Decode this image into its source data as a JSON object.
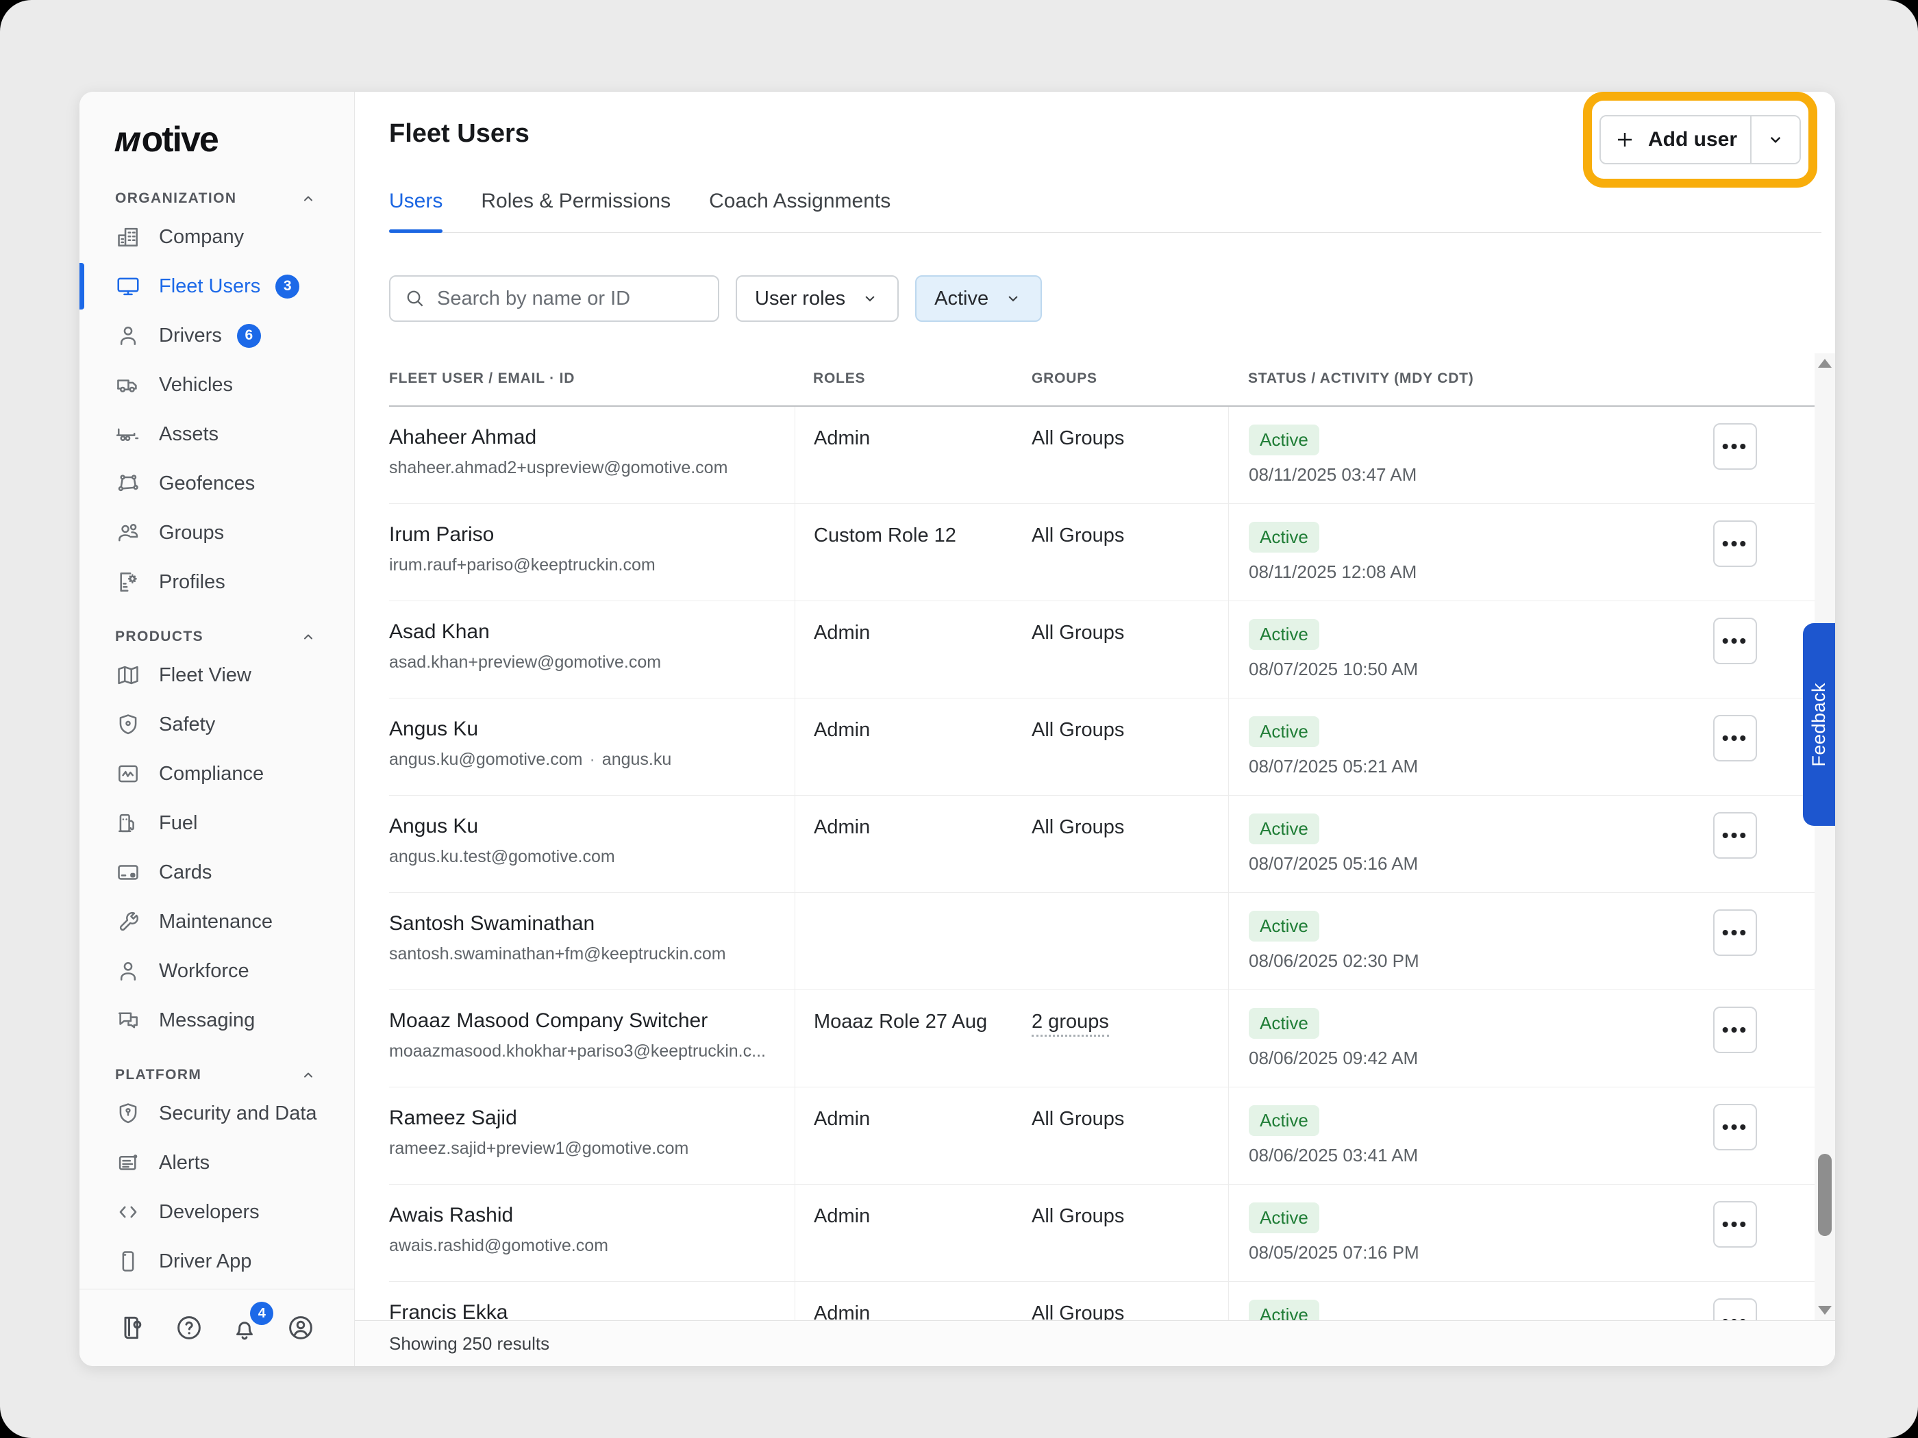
{
  "brand": {
    "logo_text": "motive"
  },
  "sidebar": {
    "sections": [
      {
        "label": "ORGANIZATION",
        "collapse_icon": "chevron-up-icon",
        "items": [
          {
            "label": "Company",
            "icon": "building"
          },
          {
            "label": "Fleet Users",
            "icon": "monitor",
            "badge": "3",
            "active": true
          },
          {
            "label": "Drivers",
            "icon": "person",
            "badge": "6"
          },
          {
            "label": "Vehicles",
            "icon": "truck"
          },
          {
            "label": "Assets",
            "icon": "trailer"
          },
          {
            "label": "Geofences",
            "icon": "geofence"
          },
          {
            "label": "Groups",
            "icon": "people"
          },
          {
            "label": "Profiles",
            "icon": "profile-doc"
          }
        ]
      },
      {
        "label": "PRODUCTS",
        "collapse_icon": "chevron-up-icon",
        "items": [
          {
            "label": "Fleet View",
            "icon": "map"
          },
          {
            "label": "Safety",
            "icon": "shield"
          },
          {
            "label": "Compliance",
            "icon": "compliance"
          },
          {
            "label": "Fuel",
            "icon": "fuel"
          },
          {
            "label": "Cards",
            "icon": "card"
          },
          {
            "label": "Maintenance",
            "icon": "wrench"
          },
          {
            "label": "Workforce",
            "icon": "person"
          },
          {
            "label": "Messaging",
            "icon": "chat"
          }
        ]
      },
      {
        "label": "PLATFORM",
        "collapse_icon": "chevron-up-icon",
        "items": [
          {
            "label": "Security and Data",
            "icon": "shield-lock"
          },
          {
            "label": "Alerts",
            "icon": "alerts"
          },
          {
            "label": "Developers",
            "icon": "code"
          },
          {
            "label": "Driver App",
            "icon": "phone"
          }
        ]
      }
    ],
    "footer_icons": [
      {
        "name": "guidebook-pin-icon"
      },
      {
        "name": "help-icon"
      },
      {
        "name": "notifications-bell-icon",
        "badge": "4"
      },
      {
        "name": "account-icon"
      }
    ]
  },
  "header": {
    "title": "Fleet Users",
    "add_user_label": "Add user"
  },
  "tabs": [
    {
      "label": "Users",
      "active": true
    },
    {
      "label": "Roles & Permissions",
      "active": false
    },
    {
      "label": "Coach Assignments",
      "active": false
    }
  ],
  "filters": {
    "search_placeholder": "Search by name or ID",
    "user_roles_label": "User roles",
    "status_label": "Active"
  },
  "table": {
    "columns": [
      "FLEET USER / EMAIL · ID",
      "ROLES",
      "GROUPS",
      "STATUS / ACTIVITY (MDY CDT)"
    ],
    "rows": [
      {
        "name": "Ahaheer Ahmad",
        "email": "shaheer.ahmad2+uspreview@gomotive.com",
        "roles": "Admin",
        "groups": "All Groups",
        "status": "Active",
        "activity": "08/11/2025 03:47 AM"
      },
      {
        "name": "Irum Pariso",
        "email": "irum.rauf+pariso@keeptruckin.com",
        "roles": "Custom Role 12",
        "groups": "All Groups",
        "status": "Active",
        "activity": "08/11/2025 12:08 AM"
      },
      {
        "name": "Asad Khan",
        "email": "asad.khan+preview@gomotive.com",
        "roles": "Admin",
        "groups": "All Groups",
        "status": "Active",
        "activity": "08/07/2025 10:50 AM"
      },
      {
        "name": "Angus Ku",
        "email": "angus.ku@gomotive.com",
        "user_id": "angus.ku",
        "roles": "Admin",
        "groups": "All Groups",
        "status": "Active",
        "activity": "08/07/2025 05:21 AM"
      },
      {
        "name": "Angus Ku",
        "email": "angus.ku.test@gomotive.com",
        "roles": "Admin",
        "groups": "All Groups",
        "status": "Active",
        "activity": "08/07/2025 05:16 AM"
      },
      {
        "name": "Santosh Swaminathan",
        "email": "santosh.swaminathan+fm@keeptruckin.com",
        "roles": "",
        "groups": "",
        "status": "Active",
        "activity": "08/06/2025 02:30 PM"
      },
      {
        "name": "Moaaz Masood Company Switcher",
        "email": "moaazmasood.khokhar+pariso3@keeptruckin.c...",
        "roles": "Moaaz Role 27 Aug",
        "groups": "2 groups",
        "groups_link": true,
        "status": "Active",
        "activity": "08/06/2025 09:42 AM"
      },
      {
        "name": "Rameez Sajid",
        "email": "rameez.sajid+preview1@gomotive.com",
        "roles": "Admin",
        "groups": "All Groups",
        "status": "Active",
        "activity": "08/06/2025 03:41 AM"
      },
      {
        "name": "Awais Rashid",
        "email": "awais.rashid@gomotive.com",
        "roles": "Admin",
        "groups": "All Groups",
        "status": "Active",
        "activity": "08/05/2025 07:16 PM"
      },
      {
        "name": "Francis Ekka",
        "email": "",
        "roles": "Admin",
        "groups": "All Groups",
        "status": "Active",
        "activity": ""
      }
    ],
    "footer": "Showing 250 results"
  },
  "feedback_label": "Feedback",
  "colors": {
    "accent_blue": "#1c69e8",
    "highlight_orange": "#f8ad0b",
    "status_green_text": "#1f7d36",
    "status_green_bg": "#e4f3e7",
    "feedback_blue": "#1d56cf",
    "active_chip_bg": "#e3f0fb"
  }
}
